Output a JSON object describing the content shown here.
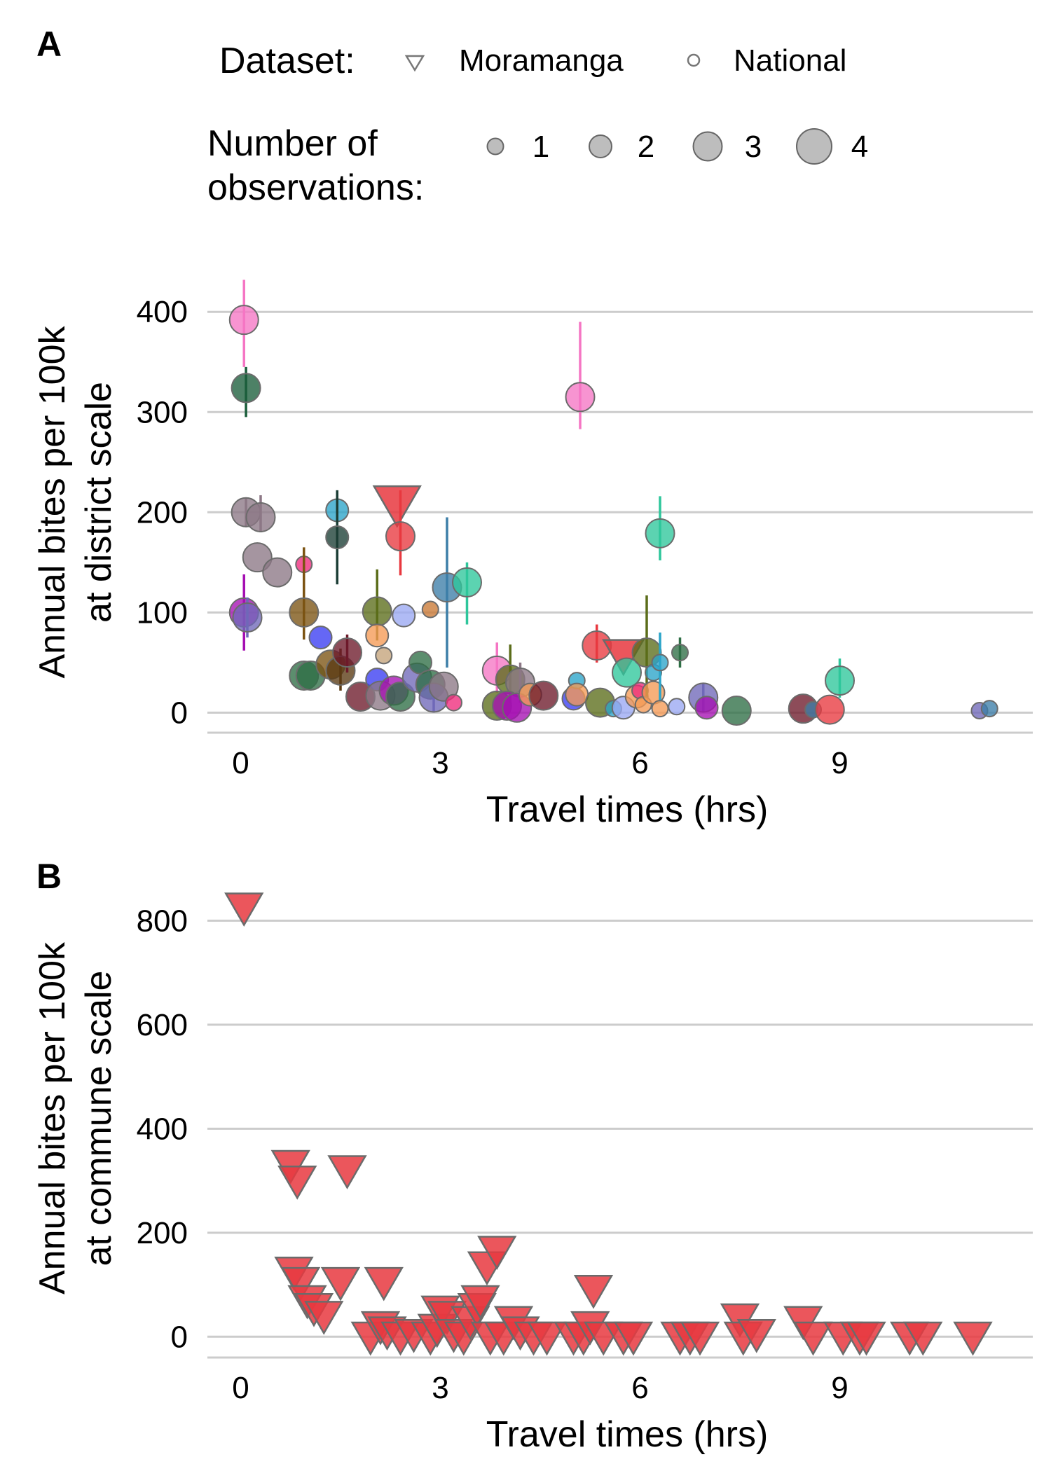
{
  "legend": {
    "dataset_title": "Dataset:",
    "dataset_items": [
      {
        "label": "Moramanga",
        "shape": "triangle-down-open"
      },
      {
        "label": "National",
        "shape": "circle-open"
      }
    ],
    "size_title_line1": "Number of",
    "size_title_line2": "observations:",
    "size_items": [
      {
        "label": "1",
        "n": 1
      },
      {
        "label": "2",
        "n": 2
      },
      {
        "label": "3",
        "n": 3
      },
      {
        "label": "4",
        "n": 4
      }
    ]
  },
  "chart_data": [
    {
      "panel": "A",
      "type": "scatter",
      "xlabel": "Travel times (hrs)",
      "ylabel_line1": "Annual bites per 100k",
      "ylabel_line2": "at district scale",
      "xlim": [
        -0.5,
        11.9
      ],
      "ylim": [
        -20,
        440
      ],
      "xticks": [
        0,
        3,
        6,
        9
      ],
      "yticks": [
        0,
        100,
        200,
        300,
        400
      ],
      "grid": "horizontal",
      "points": [
        {
          "x": 0.05,
          "y": 392,
          "lo": 345,
          "hi": 432,
          "n": 3,
          "color": "#f576c4"
        },
        {
          "x": 0.08,
          "y": 324,
          "lo": 295,
          "hi": 345,
          "n": 3,
          "color": "#1b5e3b"
        },
        {
          "x": 0.08,
          "y": 200,
          "lo": 185,
          "hi": 214,
          "n": 3,
          "color": "#8c7785"
        },
        {
          "x": 0.3,
          "y": 195,
          "lo": 180,
          "hi": 217,
          "n": 3,
          "color": "#8c7785"
        },
        {
          "x": 0.25,
          "y": 155,
          "n": 3,
          "color": "#8c7785"
        },
        {
          "x": 0.55,
          "y": 140,
          "n": 3,
          "color": "#8c7785"
        },
        {
          "x": 0.05,
          "y": 100,
          "lo": 62,
          "hi": 138,
          "n": 3,
          "color": "#a50fb2"
        },
        {
          "x": 0.1,
          "y": 95,
          "lo": 75,
          "hi": 115,
          "n": 3,
          "color": "#6f68b8"
        },
        {
          "x": 0.95,
          "y": 148,
          "n": 1,
          "color": "#ee2a7b"
        },
        {
          "x": 0.95,
          "y": 100,
          "lo": 73,
          "hi": 165,
          "n": 3,
          "color": "#7b5312"
        },
        {
          "x": 1.45,
          "y": 202,
          "n": 2,
          "color": "#2aa4c9"
        },
        {
          "x": 1.45,
          "y": 175,
          "lo": 128,
          "hi": 222,
          "n": 2,
          "color": "#1b3d35"
        },
        {
          "x": 2.35,
          "y": 208,
          "n": 4,
          "color": "#e8383f",
          "shape": "triangle"
        },
        {
          "x": 2.4,
          "y": 176,
          "lo": 137,
          "hi": 222,
          "n": 3,
          "color": "#e8383f"
        },
        {
          "x": 1.2,
          "y": 75,
          "n": 2,
          "color": "#3a3cf2"
        },
        {
          "x": 2.05,
          "y": 101,
          "lo": 72,
          "hi": 143,
          "n": 3,
          "color": "#5b6d1a"
        },
        {
          "x": 2.05,
          "y": 77,
          "n": 2,
          "color": "#f59a54"
        },
        {
          "x": 2.45,
          "y": 97,
          "n": 2,
          "color": "#9aa8f2"
        },
        {
          "x": 2.85,
          "y": 103,
          "n": 1,
          "color": "#c97834"
        },
        {
          "x": 3.1,
          "y": 125,
          "lo": 45,
          "hi": 195,
          "n": 3,
          "color": "#3c7ea8"
        },
        {
          "x": 3.4,
          "y": 130,
          "lo": 88,
          "hi": 150,
          "n": 3,
          "color": "#2ec69b"
        },
        {
          "x": 0.95,
          "y": 37,
          "n": 3,
          "color": "#2e6e45"
        },
        {
          "x": 1.05,
          "y": 37,
          "n": 3,
          "color": "#2e6e45"
        },
        {
          "x": 1.35,
          "y": 48,
          "n": 3,
          "color": "#7b5312"
        },
        {
          "x": 1.5,
          "y": 42,
          "lo": 22,
          "hi": 64,
          "n": 3,
          "color": "#5a3a12"
        },
        {
          "x": 1.6,
          "y": 60,
          "lo": 40,
          "hi": 78,
          "n": 3,
          "color": "#6d1a2a"
        },
        {
          "x": 1.8,
          "y": 16,
          "n": 3,
          "color": "#6d1a2a"
        },
        {
          "x": 2.05,
          "y": 33,
          "n": 2,
          "color": "#3a3cf2"
        },
        {
          "x": 2.15,
          "y": 57,
          "n": 1,
          "color": "#c4a37a"
        },
        {
          "x": 2.1,
          "y": 17,
          "n": 3,
          "color": "#8c7785"
        },
        {
          "x": 2.3,
          "y": 22,
          "n": 3,
          "color": "#a50fb2"
        },
        {
          "x": 2.4,
          "y": 16,
          "n": 3,
          "color": "#2e6e45"
        },
        {
          "x": 2.65,
          "y": 35,
          "n": 3,
          "color": "#6f68b8"
        },
        {
          "x": 2.7,
          "y": 50,
          "n": 2,
          "color": "#2e6e45"
        },
        {
          "x": 2.85,
          "y": 28,
          "n": 3,
          "color": "#2e6e45"
        },
        {
          "x": 2.9,
          "y": 15,
          "lo": 0,
          "hi": 30,
          "n": 3,
          "color": "#6f68b8"
        },
        {
          "x": 3.05,
          "y": 26,
          "n": 3,
          "color": "#8c7785"
        },
        {
          "x": 3.2,
          "y": 10,
          "n": 1,
          "color": "#ee2a7b"
        },
        {
          "x": 3.85,
          "y": 42,
          "lo": 20,
          "hi": 70,
          "n": 3,
          "color": "#f576c4"
        },
        {
          "x": 4.05,
          "y": 33,
          "lo": 10,
          "hi": 68,
          "n": 3,
          "color": "#5b6d1a"
        },
        {
          "x": 4.2,
          "y": 30,
          "lo": 10,
          "hi": 50,
          "n": 3,
          "color": "#8c7785"
        },
        {
          "x": 3.85,
          "y": 7,
          "n": 3,
          "color": "#5b6d1a"
        },
        {
          "x": 4.0,
          "y": 7,
          "n": 3,
          "color": "#a50fb2"
        },
        {
          "x": 4.15,
          "y": 5,
          "n": 3,
          "color": "#a50fb2"
        },
        {
          "x": 4.35,
          "y": 18,
          "n": 2,
          "color": "#f59a54"
        },
        {
          "x": 4.55,
          "y": 17,
          "n": 3,
          "color": "#6d1a2a"
        },
        {
          "x": 5.0,
          "y": 14,
          "n": 2,
          "color": "#3a3cf2"
        },
        {
          "x": 5.05,
          "y": 32,
          "n": 1,
          "color": "#2aa4c9"
        },
        {
          "x": 5.05,
          "y": 18,
          "n": 2,
          "color": "#f59a54"
        },
        {
          "x": 5.4,
          "y": 10,
          "n": 3,
          "color": "#5b6d1a"
        },
        {
          "x": 5.1,
          "y": 315,
          "lo": 283,
          "hi": 390,
          "n": 3,
          "color": "#f576c4"
        },
        {
          "x": 5.35,
          "y": 67,
          "lo": 50,
          "hi": 88,
          "n": 3,
          "color": "#e8383f"
        },
        {
          "x": 5.6,
          "y": 4,
          "n": 1,
          "color": "#2aa4c9"
        },
        {
          "x": 5.75,
          "y": 5,
          "n": 2,
          "color": "#9aa8f2"
        },
        {
          "x": 5.75,
          "y": 57,
          "n": 3,
          "color": "#e8383f",
          "shape": "triangle"
        },
        {
          "x": 5.8,
          "y": 40,
          "n": 3,
          "color": "#2ec69b"
        },
        {
          "x": 5.95,
          "y": 16,
          "n": 2,
          "color": "#f59a54"
        },
        {
          "x": 6.0,
          "y": 22,
          "n": 1,
          "color": "#ee2a7b"
        },
        {
          "x": 6.1,
          "y": 60,
          "lo": 15,
          "hi": 117,
          "n": 3,
          "color": "#5b6d1a"
        },
        {
          "x": 6.05,
          "y": 8,
          "n": 1,
          "color": "#f59a54"
        },
        {
          "x": 6.2,
          "y": 40,
          "n": 1,
          "color": "#2aa4c9"
        },
        {
          "x": 6.2,
          "y": 20,
          "n": 2,
          "color": "#f59a54"
        },
        {
          "x": 6.3,
          "y": 50,
          "lo": 10,
          "hi": 80,
          "n": 1,
          "color": "#2aa4c9"
        },
        {
          "x": 6.3,
          "y": 179,
          "lo": 152,
          "hi": 216,
          "n": 3,
          "color": "#2ec69b"
        },
        {
          "x": 6.3,
          "y": 4,
          "n": 1,
          "color": "#f59a54"
        },
        {
          "x": 6.55,
          "y": 6,
          "n": 1,
          "color": "#9aa8f2"
        },
        {
          "x": 6.6,
          "y": 60,
          "lo": 45,
          "hi": 75,
          "n": 1,
          "color": "#2e6e45"
        },
        {
          "x": 6.95,
          "y": 15,
          "lo": 0,
          "hi": 30,
          "n": 3,
          "color": "#6f68b8"
        },
        {
          "x": 7.0,
          "y": 5,
          "n": 2,
          "color": "#a50fb2"
        },
        {
          "x": 7.45,
          "y": 2,
          "n": 3,
          "color": "#2e6e45"
        },
        {
          "x": 8.45,
          "y": 4,
          "n": 3,
          "color": "#6d1a2a"
        },
        {
          "x": 8.6,
          "y": 3,
          "n": 1,
          "color": "#3c7ea8"
        },
        {
          "x": 8.85,
          "y": 3,
          "n": 3,
          "color": "#e8383f"
        },
        {
          "x": 9.0,
          "y": 32,
          "lo": 15,
          "hi": 54,
          "n": 3,
          "color": "#2ec69b"
        },
        {
          "x": 11.1,
          "y": 2,
          "n": 1,
          "color": "#6f68b8"
        },
        {
          "x": 11.25,
          "y": 4,
          "n": 1,
          "color": "#3c7ea8"
        }
      ]
    },
    {
      "panel": "B",
      "type": "scatter",
      "xlabel": "Travel times (hrs)",
      "ylabel_line1": "Annual bites per 100k",
      "ylabel_line2": "at commune scale",
      "xlim": [
        -0.5,
        11.9
      ],
      "ylim": [
        -40,
        880
      ],
      "xticks": [
        0,
        3,
        6,
        9
      ],
      "yticks": [
        0,
        200,
        400,
        600,
        800
      ],
      "grid": "horizontal",
      "marker": "triangle-down",
      "color": "#e8383f",
      "points": [
        {
          "x": 0.05,
          "y": 825
        },
        {
          "x": 0.75,
          "y": 330
        },
        {
          "x": 0.85,
          "y": 300
        },
        {
          "x": 1.6,
          "y": 320
        },
        {
          "x": 0.8,
          "y": 125
        },
        {
          "x": 0.9,
          "y": 105
        },
        {
          "x": 1.0,
          "y": 70
        },
        {
          "x": 1.1,
          "y": 55
        },
        {
          "x": 1.25,
          "y": 40
        },
        {
          "x": 1.5,
          "y": 105
        },
        {
          "x": 2.15,
          "y": 105
        },
        {
          "x": 1.95,
          "y": 0
        },
        {
          "x": 2.1,
          "y": 20
        },
        {
          "x": 2.2,
          "y": 10
        },
        {
          "x": 2.4,
          "y": 0
        },
        {
          "x": 2.6,
          "y": 5
        },
        {
          "x": 2.85,
          "y": 0
        },
        {
          "x": 2.95,
          "y": 15
        },
        {
          "x": 3.0,
          "y": 50
        },
        {
          "x": 3.1,
          "y": 40
        },
        {
          "x": 3.2,
          "y": 5
        },
        {
          "x": 3.35,
          "y": 0
        },
        {
          "x": 3.45,
          "y": 30
        },
        {
          "x": 3.55,
          "y": 55
        },
        {
          "x": 3.6,
          "y": 70
        },
        {
          "x": 3.7,
          "y": 135
        },
        {
          "x": 3.85,
          "y": 165
        },
        {
          "x": 3.75,
          "y": 0
        },
        {
          "x": 3.95,
          "y": 0
        },
        {
          "x": 4.1,
          "y": 30
        },
        {
          "x": 4.2,
          "y": 10
        },
        {
          "x": 4.4,
          "y": 0
        },
        {
          "x": 4.6,
          "y": 0
        },
        {
          "x": 5.0,
          "y": 0
        },
        {
          "x": 5.15,
          "y": 0
        },
        {
          "x": 5.25,
          "y": 20
        },
        {
          "x": 5.3,
          "y": 90
        },
        {
          "x": 5.45,
          "y": 0
        },
        {
          "x": 5.75,
          "y": 0
        },
        {
          "x": 5.9,
          "y": 0
        },
        {
          "x": 6.6,
          "y": 0
        },
        {
          "x": 6.75,
          "y": 0
        },
        {
          "x": 6.9,
          "y": 0
        },
        {
          "x": 7.5,
          "y": 35
        },
        {
          "x": 7.55,
          "y": 0
        },
        {
          "x": 7.75,
          "y": 5
        },
        {
          "x": 8.45,
          "y": 30
        },
        {
          "x": 8.6,
          "y": 0
        },
        {
          "x": 9.05,
          "y": 0
        },
        {
          "x": 9.3,
          "y": 0
        },
        {
          "x": 9.4,
          "y": 0
        },
        {
          "x": 10.05,
          "y": 0
        },
        {
          "x": 10.25,
          "y": 0
        },
        {
          "x": 11.0,
          "y": 0
        }
      ]
    }
  ]
}
